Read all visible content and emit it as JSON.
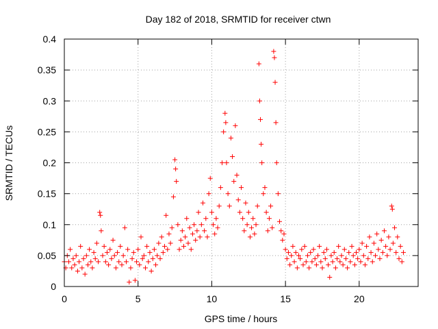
{
  "chart_data": {
    "type": "scatter",
    "title": "Day 182 of 2018, SRMTID for receiver ctwn",
    "xlabel": "GPS time / hours",
    "ylabel": "SRMTID / TECUs",
    "xlim": [
      0,
      24
    ],
    "ylim": [
      0,
      0.4
    ],
    "xticks": [
      0,
      5,
      10,
      15,
      20
    ],
    "yticks": [
      0,
      0.05,
      0.1,
      0.15,
      0.2,
      0.25,
      0.3,
      0.35,
      0.4
    ],
    "grid": true,
    "marker": "+",
    "marker_color": "#ff0000",
    "series": [
      {
        "name": "SRMTID",
        "color": "#ff0000",
        "points": [
          [
            0.0,
            0.04
          ],
          [
            0.1,
            0.03
          ],
          [
            0.2,
            0.05
          ],
          [
            0.3,
            0.04
          ],
          [
            0.4,
            0.06
          ],
          [
            0.5,
            0.03
          ],
          [
            0.6,
            0.045
          ],
          [
            0.7,
            0.035
          ],
          [
            0.8,
            0.05
          ],
          [
            0.9,
            0.025
          ],
          [
            1.0,
            0.04
          ],
          [
            1.1,
            0.065
          ],
          [
            1.2,
            0.03
          ],
          [
            1.3,
            0.045
          ],
          [
            1.4,
            0.02
          ],
          [
            1.5,
            0.05
          ],
          [
            1.6,
            0.035
          ],
          [
            1.7,
            0.06
          ],
          [
            1.8,
            0.04
          ],
          [
            1.9,
            0.03
          ],
          [
            2.0,
            0.055
          ],
          [
            2.1,
            0.045
          ],
          [
            2.2,
            0.07
          ],
          [
            2.3,
            0.04
          ],
          [
            2.4,
            0.12
          ],
          [
            2.45,
            0.115
          ],
          [
            2.5,
            0.09
          ],
          [
            2.6,
            0.05
          ],
          [
            2.7,
            0.065
          ],
          [
            2.8,
            0.04
          ],
          [
            2.9,
            0.055
          ],
          [
            3.0,
            0.035
          ],
          [
            3.1,
            0.06
          ],
          [
            3.2,
            0.045
          ],
          [
            3.3,
            0.075
          ],
          [
            3.4,
            0.05
          ],
          [
            3.5,
            0.03
          ],
          [
            3.6,
            0.055
          ],
          [
            3.7,
            0.04
          ],
          [
            3.8,
            0.065
          ],
          [
            3.9,
            0.035
          ],
          [
            4.0,
            0.05
          ],
          [
            4.1,
            0.095
          ],
          [
            4.2,
            0.04
          ],
          [
            4.3,
            0.06
          ],
          [
            4.4,
            0.007
          ],
          [
            4.5,
            0.03
          ],
          [
            4.6,
            0.045
          ],
          [
            4.7,
            0.055
          ],
          [
            4.8,
            0.01
          ],
          [
            4.9,
            0.04
          ],
          [
            5.0,
            0.06
          ],
          [
            5.1,
            0.035
          ],
          [
            5.2,
            0.08
          ],
          [
            5.3,
            0.045
          ],
          [
            5.4,
            0.05
          ],
          [
            5.5,
            0.03
          ],
          [
            5.6,
            0.065
          ],
          [
            5.7,
            0.04
          ],
          [
            5.8,
            0.055
          ],
          [
            5.9,
            0.025
          ],
          [
            6.0,
            0.045
          ],
          [
            6.1,
            0.06
          ],
          [
            6.2,
            0.035
          ],
          [
            6.3,
            0.05
          ],
          [
            6.4,
            0.07
          ],
          [
            6.5,
            0.045
          ],
          [
            6.6,
            0.08
          ],
          [
            6.7,
            0.055
          ],
          [
            6.8,
            0.065
          ],
          [
            6.9,
            0.115
          ],
          [
            7.0,
            0.06
          ],
          [
            7.1,
            0.085
          ],
          [
            7.2,
            0.07
          ],
          [
            7.3,
            0.095
          ],
          [
            7.4,
            0.145
          ],
          [
            7.5,
            0.205
          ],
          [
            7.55,
            0.19
          ],
          [
            7.6,
            0.17
          ],
          [
            7.7,
            0.1
          ],
          [
            7.8,
            0.06
          ],
          [
            7.9,
            0.075
          ],
          [
            8.0,
            0.09
          ],
          [
            8.1,
            0.065
          ],
          [
            8.2,
            0.08
          ],
          [
            8.3,
            0.11
          ],
          [
            8.4,
            0.07
          ],
          [
            8.5,
            0.095
          ],
          [
            8.6,
            0.06
          ],
          [
            8.7,
            0.085
          ],
          [
            8.8,
            0.1
          ],
          [
            8.9,
            0.075
          ],
          [
            9.0,
            0.09
          ],
          [
            9.1,
            0.12
          ],
          [
            9.2,
            0.08
          ],
          [
            9.3,
            0.1
          ],
          [
            9.4,
            0.135
          ],
          [
            9.5,
            0.09
          ],
          [
            9.6,
            0.11
          ],
          [
            9.7,
            0.08
          ],
          [
            9.8,
            0.15
          ],
          [
            9.9,
            0.175
          ],
          [
            10.0,
            0.12
          ],
          [
            10.1,
            0.1
          ],
          [
            10.2,
            0.085
          ],
          [
            10.3,
            0.11
          ],
          [
            10.4,
            0.095
          ],
          [
            10.5,
            0.13
          ],
          [
            10.6,
            0.16
          ],
          [
            10.7,
            0.2
          ],
          [
            10.8,
            0.25
          ],
          [
            10.9,
            0.28
          ],
          [
            10.95,
            0.265
          ],
          [
            11.0,
            0.2
          ],
          [
            11.1,
            0.15
          ],
          [
            11.2,
            0.13
          ],
          [
            11.3,
            0.24
          ],
          [
            11.4,
            0.21
          ],
          [
            11.5,
            0.17
          ],
          [
            11.6,
            0.26
          ],
          [
            11.7,
            0.18
          ],
          [
            11.8,
            0.14
          ],
          [
            11.9,
            0.12
          ],
          [
            12.0,
            0.16
          ],
          [
            12.1,
            0.11
          ],
          [
            12.2,
            0.09
          ],
          [
            12.3,
            0.135
          ],
          [
            12.4,
            0.1
          ],
          [
            12.5,
            0.12
          ],
          [
            12.6,
            0.08
          ],
          [
            12.7,
            0.095
          ],
          [
            12.8,
            0.11
          ],
          [
            12.9,
            0.085
          ],
          [
            13.0,
            0.1
          ],
          [
            13.1,
            0.13
          ],
          [
            13.2,
            0.36
          ],
          [
            13.25,
            0.3
          ],
          [
            13.3,
            0.27
          ],
          [
            13.35,
            0.23
          ],
          [
            13.4,
            0.2
          ],
          [
            13.5,
            0.15
          ],
          [
            13.6,
            0.16
          ],
          [
            13.7,
            0.12
          ],
          [
            13.8,
            0.09
          ],
          [
            13.9,
            0.11
          ],
          [
            14.0,
            0.13
          ],
          [
            14.1,
            0.095
          ],
          [
            14.2,
            0.38
          ],
          [
            14.25,
            0.37
          ],
          [
            14.3,
            0.33
          ],
          [
            14.35,
            0.265
          ],
          [
            14.4,
            0.2
          ],
          [
            14.5,
            0.15
          ],
          [
            14.6,
            0.105
          ],
          [
            14.7,
            0.09
          ],
          [
            14.8,
            0.075
          ],
          [
            14.9,
            0.085
          ],
          [
            15.0,
            0.06
          ],
          [
            15.1,
            0.045
          ],
          [
            15.2,
            0.055
          ],
          [
            15.3,
            0.035
          ],
          [
            15.4,
            0.05
          ],
          [
            15.5,
            0.065
          ],
          [
            15.6,
            0.04
          ],
          [
            15.7,
            0.055
          ],
          [
            15.8,
            0.03
          ],
          [
            15.9,
            0.05
          ],
          [
            16.0,
            0.045
          ],
          [
            16.1,
            0.06
          ],
          [
            16.2,
            0.035
          ],
          [
            16.3,
            0.065
          ],
          [
            16.4,
            0.04
          ],
          [
            16.5,
            0.05
          ],
          [
            16.6,
            0.03
          ],
          [
            16.7,
            0.055
          ],
          [
            16.8,
            0.04
          ],
          [
            16.9,
            0.06
          ],
          [
            17.0,
            0.045
          ],
          [
            17.1,
            0.035
          ],
          [
            17.2,
            0.05
          ],
          [
            17.3,
            0.065
          ],
          [
            17.4,
            0.04
          ],
          [
            17.5,
            0.03
          ],
          [
            17.6,
            0.055
          ],
          [
            17.7,
            0.045
          ],
          [
            17.8,
            0.06
          ],
          [
            17.9,
            0.035
          ],
          [
            18.0,
            0.015
          ],
          [
            18.1,
            0.05
          ],
          [
            18.2,
            0.04
          ],
          [
            18.3,
            0.055
          ],
          [
            18.4,
            0.03
          ],
          [
            18.5,
            0.045
          ],
          [
            18.6,
            0.065
          ],
          [
            18.7,
            0.04
          ],
          [
            18.8,
            0.05
          ],
          [
            18.9,
            0.035
          ],
          [
            19.0,
            0.06
          ],
          [
            19.1,
            0.045
          ],
          [
            19.2,
            0.03
          ],
          [
            19.3,
            0.055
          ],
          [
            19.4,
            0.04
          ],
          [
            19.5,
            0.065
          ],
          [
            19.6,
            0.05
          ],
          [
            19.7,
            0.035
          ],
          [
            19.8,
            0.055
          ],
          [
            19.9,
            0.045
          ],
          [
            20.0,
            0.06
          ],
          [
            20.1,
            0.04
          ],
          [
            20.2,
            0.07
          ],
          [
            20.3,
            0.05
          ],
          [
            20.4,
            0.035
          ],
          [
            20.5,
            0.065
          ],
          [
            20.6,
            0.045
          ],
          [
            20.7,
            0.08
          ],
          [
            20.8,
            0.055
          ],
          [
            20.9,
            0.04
          ],
          [
            21.0,
            0.07
          ],
          [
            21.1,
            0.05
          ],
          [
            21.2,
            0.085
          ],
          [
            21.3,
            0.06
          ],
          [
            21.4,
            0.045
          ],
          [
            21.5,
            0.075
          ],
          [
            21.6,
            0.055
          ],
          [
            21.7,
            0.09
          ],
          [
            21.8,
            0.065
          ],
          [
            21.9,
            0.05
          ],
          [
            22.0,
            0.08
          ],
          [
            22.1,
            0.06
          ],
          [
            22.2,
            0.13
          ],
          [
            22.25,
            0.125
          ],
          [
            22.3,
            0.07
          ],
          [
            22.4,
            0.095
          ],
          [
            22.5,
            0.055
          ],
          [
            22.6,
            0.08
          ],
          [
            22.7,
            0.045
          ],
          [
            22.8,
            0.065
          ],
          [
            22.9,
            0.04
          ],
          [
            23.0,
            0.055
          ]
        ]
      }
    ]
  }
}
